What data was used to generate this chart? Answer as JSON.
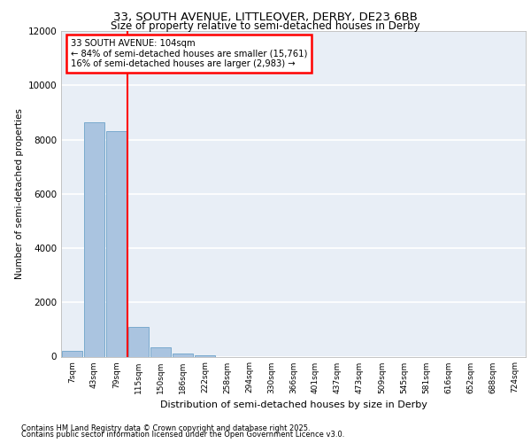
{
  "title_line1": "33, SOUTH AVENUE, LITTLEOVER, DERBY, DE23 6BB",
  "title_line2": "Size of property relative to semi-detached houses in Derby",
  "xlabel": "Distribution of semi-detached houses by size in Derby",
  "ylabel": "Number of semi-detached properties",
  "categories": [
    "7sqm",
    "43sqm",
    "79sqm",
    "115sqm",
    "150sqm",
    "186sqm",
    "222sqm",
    "258sqm",
    "294sqm",
    "330sqm",
    "366sqm",
    "401sqm",
    "437sqm",
    "473sqm",
    "509sqm",
    "545sqm",
    "581sqm",
    "616sqm",
    "652sqm",
    "688sqm",
    "724sqm"
  ],
  "values": [
    220,
    8650,
    8300,
    1100,
    340,
    120,
    60,
    0,
    0,
    0,
    0,
    0,
    0,
    0,
    0,
    0,
    0,
    0,
    0,
    0,
    0
  ],
  "bar_color": "#aac4e0",
  "bar_edge_color": "#7aaace",
  "property_line_x": 2.5,
  "ylim": [
    0,
    12000
  ],
  "yticks": [
    0,
    2000,
    4000,
    6000,
    8000,
    10000,
    12000
  ],
  "bg_color": "#e8eef6",
  "footer_line1": "Contains HM Land Registry data © Crown copyright and database right 2025.",
  "footer_line2": "Contains public sector information licensed under the Open Government Licence v3.0.",
  "grid_color": "#ffffff",
  "annotation_line1": "33 SOUTH AVENUE: 104sqm",
  "annotation_line2": "← 84% of semi-detached houses are smaller (15,761)",
  "annotation_line3": "16% of semi-detached houses are larger (2,983) →"
}
